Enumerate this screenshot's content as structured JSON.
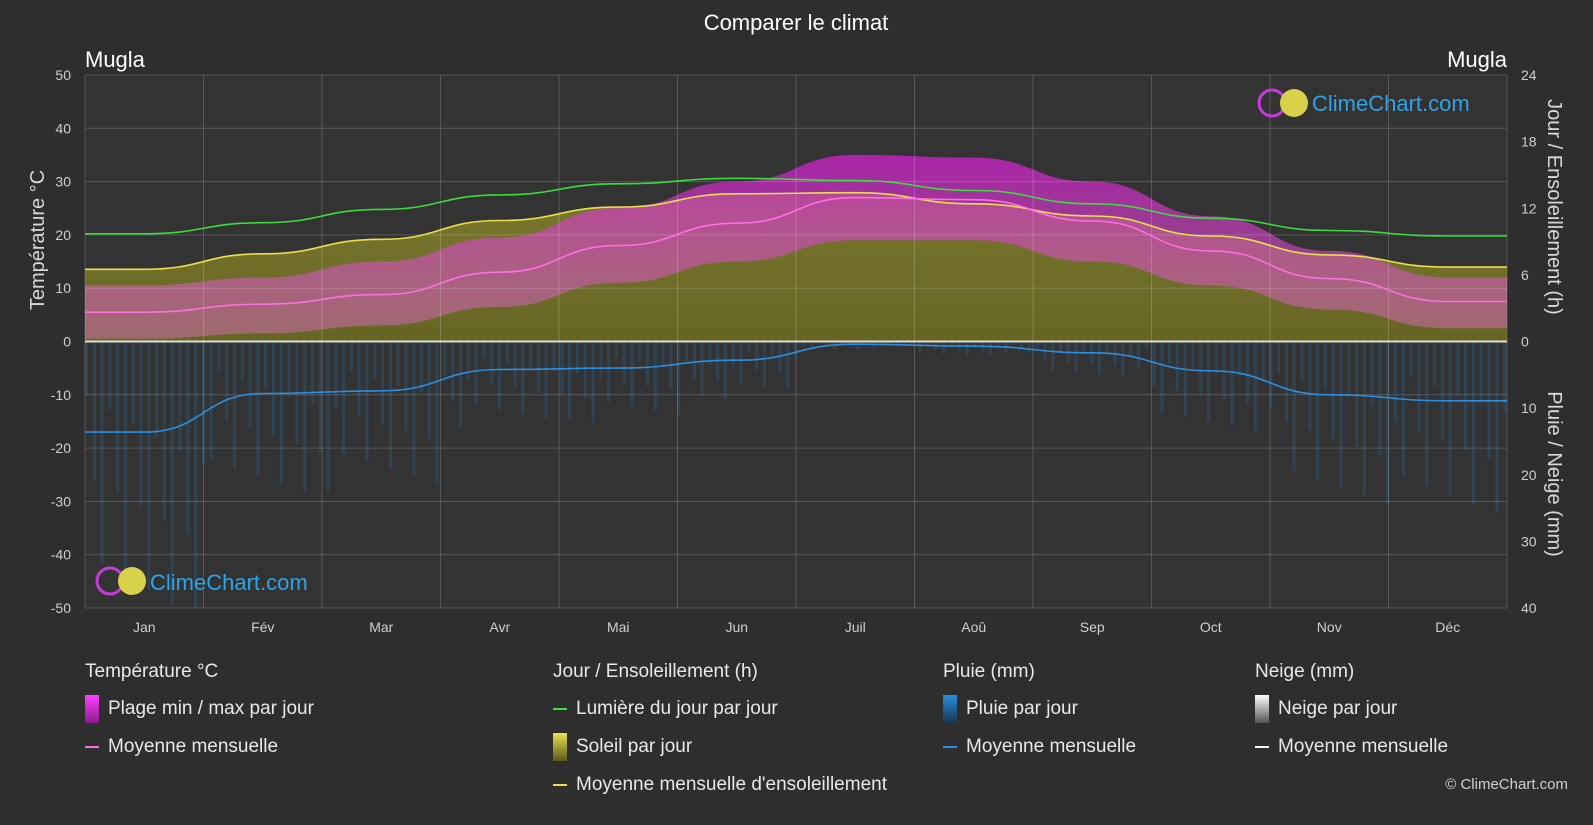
{
  "header": {
    "title": "Comparer le climat",
    "location_left": "Mugla",
    "location_right": "Mugla"
  },
  "chart_data": {
    "type": "area",
    "title": "Comparer le climat",
    "months": [
      "Jan",
      "Fév",
      "Mar",
      "Avr",
      "Mai",
      "Jun",
      "Juil",
      "Aoû",
      "Sep",
      "Oct",
      "Nov",
      "Déc"
    ],
    "y_left": {
      "label": "Température °C",
      "range": [
        -50,
        50
      ],
      "ticks": [
        50,
        40,
        30,
        20,
        10,
        0,
        -10,
        -20,
        -30,
        -40,
        -50
      ]
    },
    "y_right_top": {
      "label": "Jour / Ensoleillement (h)",
      "range": [
        0,
        24
      ],
      "ticks": [
        24,
        18,
        12,
        6,
        0
      ]
    },
    "y_right_bottom": {
      "label": "Pluie / Neige (mm)",
      "range": [
        0,
        40
      ],
      "ticks": [
        0,
        10,
        20,
        30,
        40
      ]
    },
    "series": [
      {
        "name": "Lumière du jour par jour",
        "axis": "hours",
        "color": "#3ddc3d",
        "values": [
          9.7,
          10.7,
          11.9,
          13.2,
          14.2,
          14.7,
          14.5,
          13.6,
          12.4,
          11.1,
          10.0,
          9.5
        ]
      },
      {
        "name": "Moyenne mensuelle d'ensoleillement",
        "axis": "hours",
        "color": "#e6e04a",
        "values": [
          6.5,
          7.9,
          9.2,
          10.9,
          12.1,
          13.3,
          13.4,
          12.4,
          11.3,
          9.5,
          7.8,
          6.7
        ]
      },
      {
        "name": "Moyenne mensuelle (température)",
        "axis": "temp",
        "color": "#ff6ee0",
        "values": [
          5.5,
          7.0,
          8.8,
          13.0,
          18.0,
          22.2,
          27.0,
          26.6,
          22.6,
          17.0,
          11.8,
          7.5
        ]
      },
      {
        "name": "Moyenne mensuelle (pluie)",
        "axis": "rain",
        "color": "#2a8fe0",
        "values": [
          13.6,
          7.8,
          7.4,
          4.2,
          4.0,
          2.8,
          0.4,
          0.7,
          1.7,
          4.4,
          8.0,
          8.9
        ]
      },
      {
        "name": "Plage min / max par jour (max)",
        "axis": "temp",
        "values": [
          10.5,
          12.0,
          15.0,
          19.5,
          25.0,
          30.0,
          35.0,
          34.5,
          30.0,
          23.5,
          17.0,
          12.0
        ]
      },
      {
        "name": "Plage min / max par jour (min)",
        "axis": "temp",
        "values": [
          0.5,
          1.5,
          3.0,
          6.5,
          11.0,
          15.0,
          19.0,
          19.0,
          15.0,
          10.5,
          6.0,
          2.5
        ]
      }
    ],
    "grid": true
  },
  "legend": {
    "col1": {
      "title": "Température °C",
      "items": [
        "Plage min / max par jour",
        "Moyenne mensuelle"
      ]
    },
    "col2": {
      "title": "Jour / Ensoleillement (h)",
      "items": [
        "Lumière du jour par jour",
        "Soleil par jour",
        "Moyenne mensuelle d'ensoleillement"
      ]
    },
    "col3": {
      "title": "Pluie (mm)",
      "items": [
        "Pluie par jour",
        "Moyenne mensuelle"
      ]
    },
    "col4": {
      "title": "Neige (mm)",
      "items": [
        "Neige par jour",
        "Moyenne mensuelle"
      ]
    }
  },
  "branding": {
    "logo_text": "ClimeChart.com",
    "copyright": "© ClimeChart.com"
  },
  "colors": {
    "background": "#2e2e2e",
    "daylight": "#3ddc3d",
    "sunshine": "#e6e04a",
    "temp_avg": "#ff6ee0",
    "temp_range": "#d21fcf",
    "rain": "#2a8fe0",
    "snow": "#ffffff"
  }
}
